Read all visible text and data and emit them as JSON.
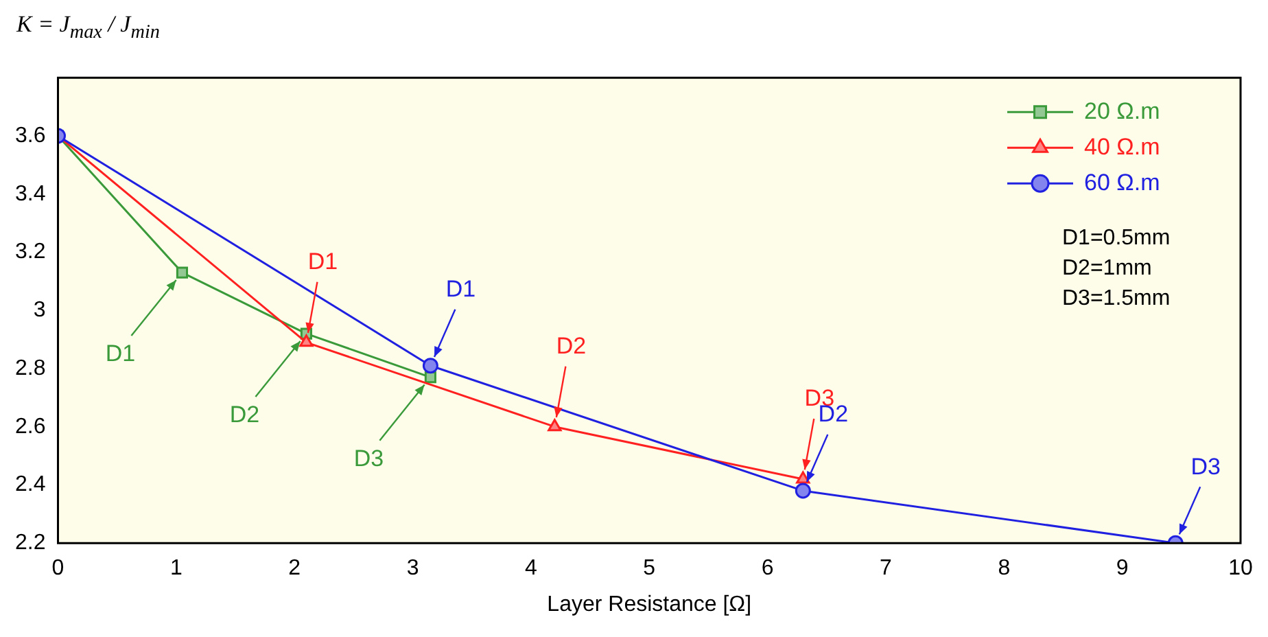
{
  "chart_data": {
    "type": "line",
    "title": "K = J$_{max}$ / J$_{min}$",
    "xlabel": "Layer Resistance [Ω]",
    "xlim": [
      0,
      10
    ],
    "xticks": [
      0,
      1,
      2,
      3,
      4,
      5,
      6,
      7,
      8,
      9,
      10
    ],
    "ylim": [
      2.2,
      3.8
    ],
    "yticks": [
      2.2,
      2.4,
      2.6,
      2.8,
      3,
      3.2,
      3.4,
      3.6
    ],
    "grid": false,
    "legend": "top right",
    "line_style": "solid",
    "series": [
      {
        "name": "20 Ω.m",
        "color": "#3a9a3a",
        "marker": "square",
        "x": [
          0,
          1.05,
          2.1,
          3.15
        ],
        "values": [
          3.6,
          3.13,
          2.92,
          2.77
        ]
      },
      {
        "name": "40 Ω.m",
        "color": "#ff2020",
        "marker": "triangle",
        "x": [
          0,
          2.1,
          4.2,
          6.3
        ],
        "values": [
          3.6,
          2.89,
          2.6,
          2.42
        ]
      },
      {
        "name": "60 Ω.m",
        "color": "#2020e0",
        "marker": "circle",
        "x": [
          0,
          3.15,
          6.3,
          9.45
        ],
        "values": [
          3.6,
          2.81,
          2.38,
          2.2
        ]
      }
    ],
    "annotations": [
      {
        "text": "D1",
        "x": 1.05,
        "y": 3.13
      },
      {
        "text": "D2",
        "x": 2.1,
        "y": 2.92
      },
      {
        "text": "D3",
        "x": 3.15,
        "y": 2.77
      },
      {
        "text": "D1",
        "x": 2.1,
        "y": 2.89
      },
      {
        "text": "D2",
        "x": 4.2,
        "y": 2.6
      },
      {
        "text": "D3",
        "x": 6.3,
        "y": 2.42
      },
      {
        "text": "D1",
        "x": 3.15,
        "y": 2.81
      },
      {
        "text": "D2",
        "x": 6.3,
        "y": 2.38
      },
      {
        "text": "D3",
        "x": 9.45,
        "y": 2.2
      },
      "D1=0.5mm",
      "D2=1mm",
      "D3=1.5mm"
    ]
  }
}
